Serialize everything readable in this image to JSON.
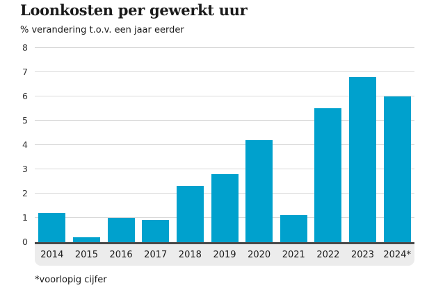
{
  "chart": {
    "title": "Loonkosten per gewerkt uur",
    "subtitle": "% verandering t.o.v. een jaar eerder",
    "footnote": "*voorlopig cijfer"
  },
  "chart_data": {
    "type": "bar",
    "categories": [
      "2014",
      "2015",
      "2016",
      "2017",
      "2018",
      "2019",
      "2020",
      "2021",
      "2022",
      "2023",
      "2024*"
    ],
    "values": [
      1.2,
      0.2,
      1.0,
      0.9,
      2.3,
      2.8,
      4.2,
      1.1,
      5.5,
      6.8,
      6.0
    ],
    "title": "Loonkosten per gewerkt uur",
    "xlabel": "",
    "ylabel": "% verandering t.o.v. een jaar eerder",
    "ylim": [
      0,
      8
    ],
    "ytick_step": 1,
    "grid": true,
    "legend": "none",
    "colors": {
      "bar": "#00a1cd",
      "gridline": "#d9d9d9",
      "axis_line": "#4a4a4a",
      "xband_background": "#ececec",
      "text": "#1a1a1a"
    }
  }
}
